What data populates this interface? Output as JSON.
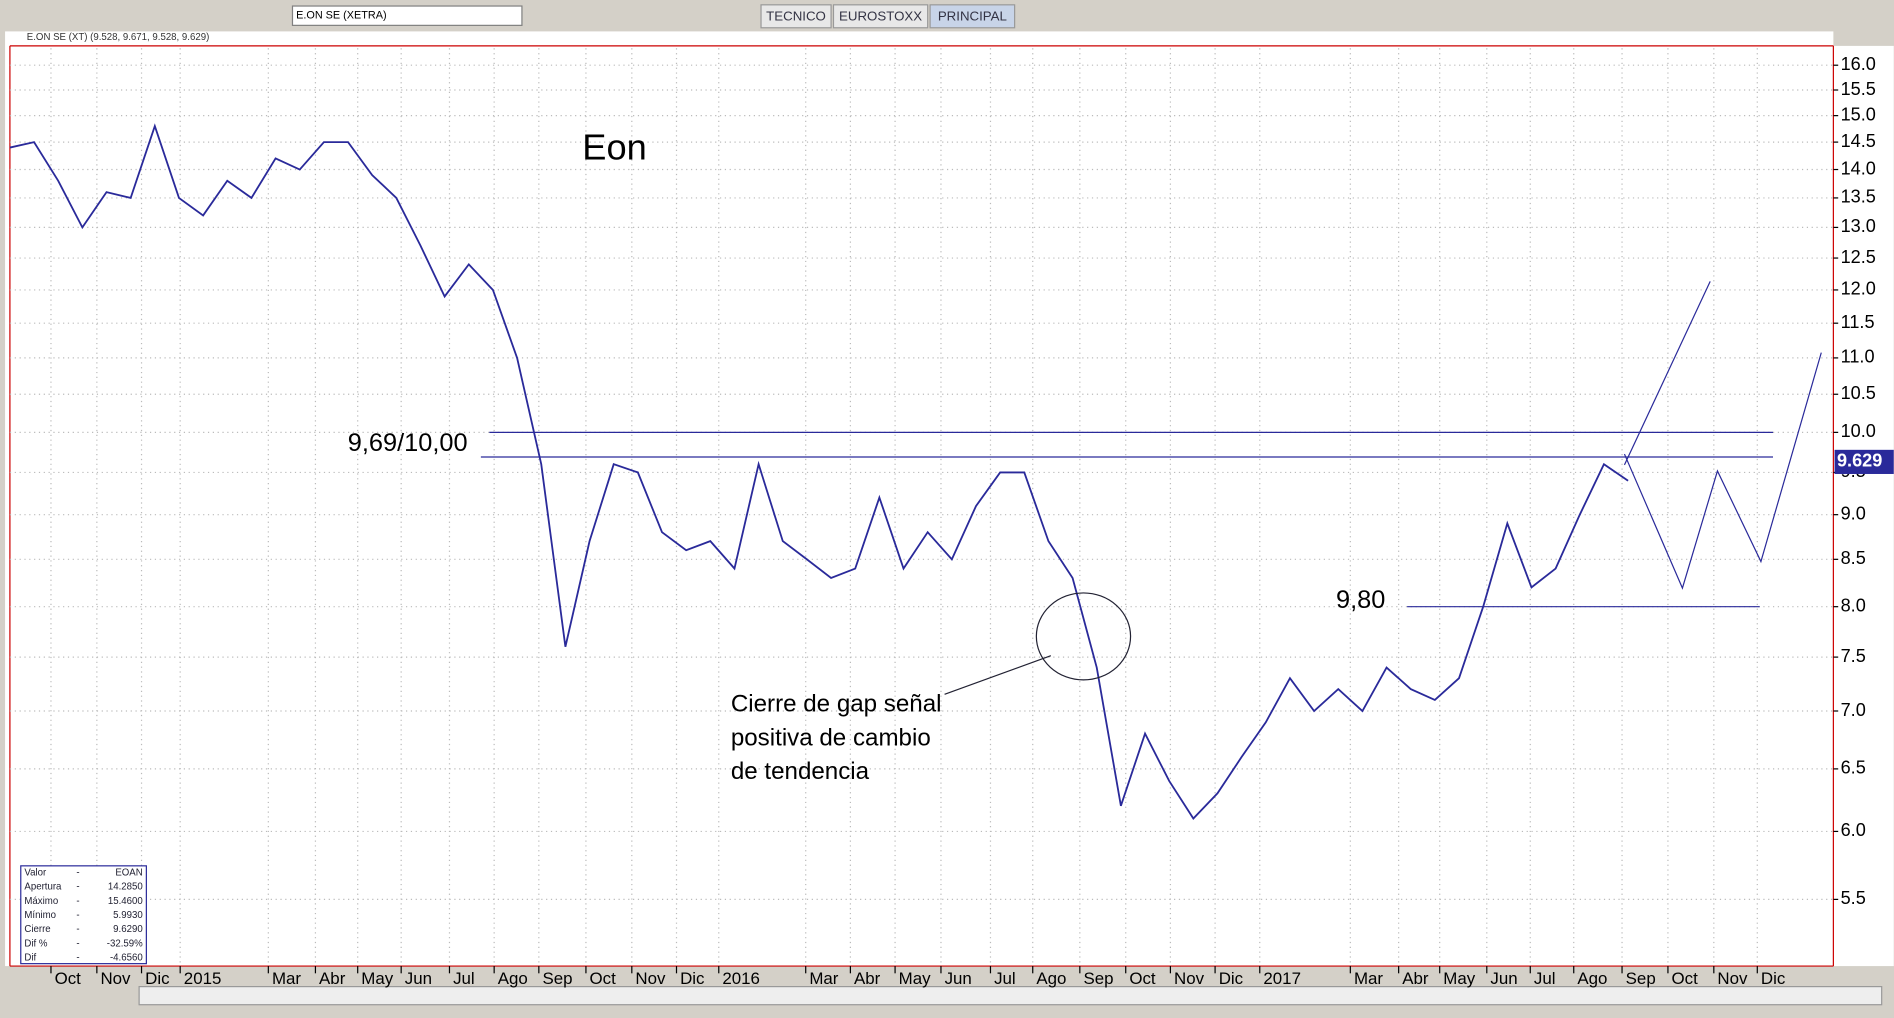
{
  "toolbar": {
    "symbol": "E.ON SE (XETRA)",
    "tabs": [
      "TECNICO",
      "EUROSTOXX",
      "PRINCIPAL"
    ]
  },
  "chart_data": {
    "type": "line",
    "header": "E.ON SE (XT) (9.528, 9.671, 9.528, 9.629)",
    "title": "Eon",
    "x": [
      0,
      2,
      4,
      6,
      8,
      10,
      12,
      14,
      16,
      18,
      20,
      22,
      24,
      26,
      28,
      30,
      32,
      34,
      36,
      38,
      40,
      42,
      44,
      46,
      48,
      50,
      52,
      54,
      56,
      58,
      60,
      62,
      64,
      66,
      68,
      70,
      72,
      74,
      76,
      78,
      80,
      82,
      84,
      86,
      88,
      90,
      92,
      94,
      96,
      98,
      100,
      102,
      104,
      106,
      108,
      110,
      112,
      114,
      116,
      118,
      120,
      122,
      124,
      126,
      128,
      130,
      132,
      134
    ],
    "values": [
      14.4,
      14.5,
      13.8,
      13.0,
      13.6,
      13.5,
      14.8,
      13.5,
      13.2,
      13.8,
      13.5,
      14.2,
      14.0,
      14.5,
      14.5,
      13.9,
      13.5,
      12.7,
      11.9,
      12.4,
      12.0,
      11.0,
      9.6,
      7.6,
      8.7,
      9.6,
      9.5,
      8.8,
      8.6,
      8.7,
      8.4,
      9.6,
      8.7,
      8.5,
      8.3,
      8.4,
      9.2,
      8.4,
      8.8,
      8.5,
      9.1,
      9.5,
      9.5,
      8.7,
      8.3,
      7.4,
      6.2,
      6.8,
      6.4,
      6.1,
      6.3,
      6.6,
      6.9,
      7.3,
      7.0,
      7.2,
      7.0,
      7.4,
      7.2,
      7.1,
      7.3,
      8.0,
      8.9,
      8.2,
      8.4,
      9.0,
      9.6,
      9.4
    ],
    "color": "#2a2a9a",
    "xlim": [
      0,
      151
    ],
    "xticks": [
      {
        "value": 3.4,
        "label": "Oct"
      },
      {
        "value": 7.2,
        "label": "Nov"
      },
      {
        "value": 10.9,
        "label": "Dic"
      },
      {
        "value": 14.1,
        "label": "2015"
      },
      {
        "value": 21.4,
        "label": "Mar"
      },
      {
        "value": 25.3,
        "label": "Abr"
      },
      {
        "value": 28.8,
        "label": "May"
      },
      {
        "value": 32.4,
        "label": "Jun"
      },
      {
        "value": 36.4,
        "label": "Jul"
      },
      {
        "value": 40.1,
        "label": "Ago"
      },
      {
        "value": 43.8,
        "label": "Sep"
      },
      {
        "value": 47.7,
        "label": "Oct"
      },
      {
        "value": 51.5,
        "label": "Nov"
      },
      {
        "value": 55.2,
        "label": "Dic"
      },
      {
        "value": 58.7,
        "label": "2016"
      },
      {
        "value": 65.9,
        "label": "Mar"
      },
      {
        "value": 69.6,
        "label": "Abr"
      },
      {
        "value": 73.3,
        "label": "May"
      },
      {
        "value": 77.1,
        "label": "Jun"
      },
      {
        "value": 81.2,
        "label": "Jul"
      },
      {
        "value": 84.7,
        "label": "Ago"
      },
      {
        "value": 88.6,
        "label": "Sep"
      },
      {
        "value": 92.4,
        "label": "Oct"
      },
      {
        "value": 96.1,
        "label": "Nov"
      },
      {
        "value": 99.8,
        "label": "Dic"
      },
      {
        "value": 103.5,
        "label": "2017"
      },
      {
        "value": 111,
        "label": "Mar"
      },
      {
        "value": 115,
        "label": "Abr"
      },
      {
        "value": 118.4,
        "label": "May"
      },
      {
        "value": 122.3,
        "label": "Jun"
      },
      {
        "value": 125.9,
        "label": "Jul"
      },
      {
        "value": 129.5,
        "label": "Ago"
      },
      {
        "value": 133.5,
        "label": "Sep"
      },
      {
        "value": 137.3,
        "label": "Oct"
      },
      {
        "value": 141.1,
        "label": "Nov"
      },
      {
        "value": 144.7,
        "label": "Dic"
      }
    ],
    "ylim": [
      5.05,
      16.35
    ],
    "yticks": [
      5.5,
      {
        "value": 6,
        "label": "6.0"
      },
      6.5,
      {
        "value": 7,
        "label": "7.0"
      },
      7.5,
      {
        "value": 8,
        "label": "8.0"
      },
      8.5,
      {
        "value": 9,
        "label": "9.0"
      },
      9.5,
      {
        "value": 10,
        "label": "10.0"
      },
      10.5,
      {
        "value": 11,
        "label": "11.0"
      },
      11.5,
      {
        "value": 12,
        "label": "12.0"
      },
      12.5,
      {
        "value": 13,
        "label": "13.0"
      },
      13.5,
      {
        "value": 14,
        "label": "14.0"
      },
      14.5,
      {
        "value": 15,
        "label": "15.0"
      },
      15.5,
      {
        "value": 16,
        "label": "16.0"
      }
    ],
    "log_scale": true,
    "grid": true,
    "last_value": 9.629,
    "levels": [
      {
        "value": 10,
        "from": 39.7,
        "to": 146
      },
      {
        "value": 9.69,
        "from": 39,
        "to": 146
      },
      {
        "value": 8,
        "from": 115.7,
        "to": 144.9
      }
    ],
    "annotations": [
      "9,69/10,00",
      "9,80",
      "Cierre de gap señal",
      "positiva de cambio",
      "de tendencia"
    ],
    "info": [
      [
        "Valor",
        "-",
        "EOAN"
      ],
      [
        "Apertura",
        "-",
        "14.2850"
      ],
      [
        "Máximo",
        "-",
        "15.4600"
      ],
      [
        "Mínimo",
        "-",
        "5.9930"
      ],
      [
        "Cierre",
        "-",
        "9.6290"
      ],
      [
        "Dif %",
        "-",
        "-32.59%"
      ],
      [
        "Dif",
        "-",
        "-4.6560"
      ]
    ]
  }
}
